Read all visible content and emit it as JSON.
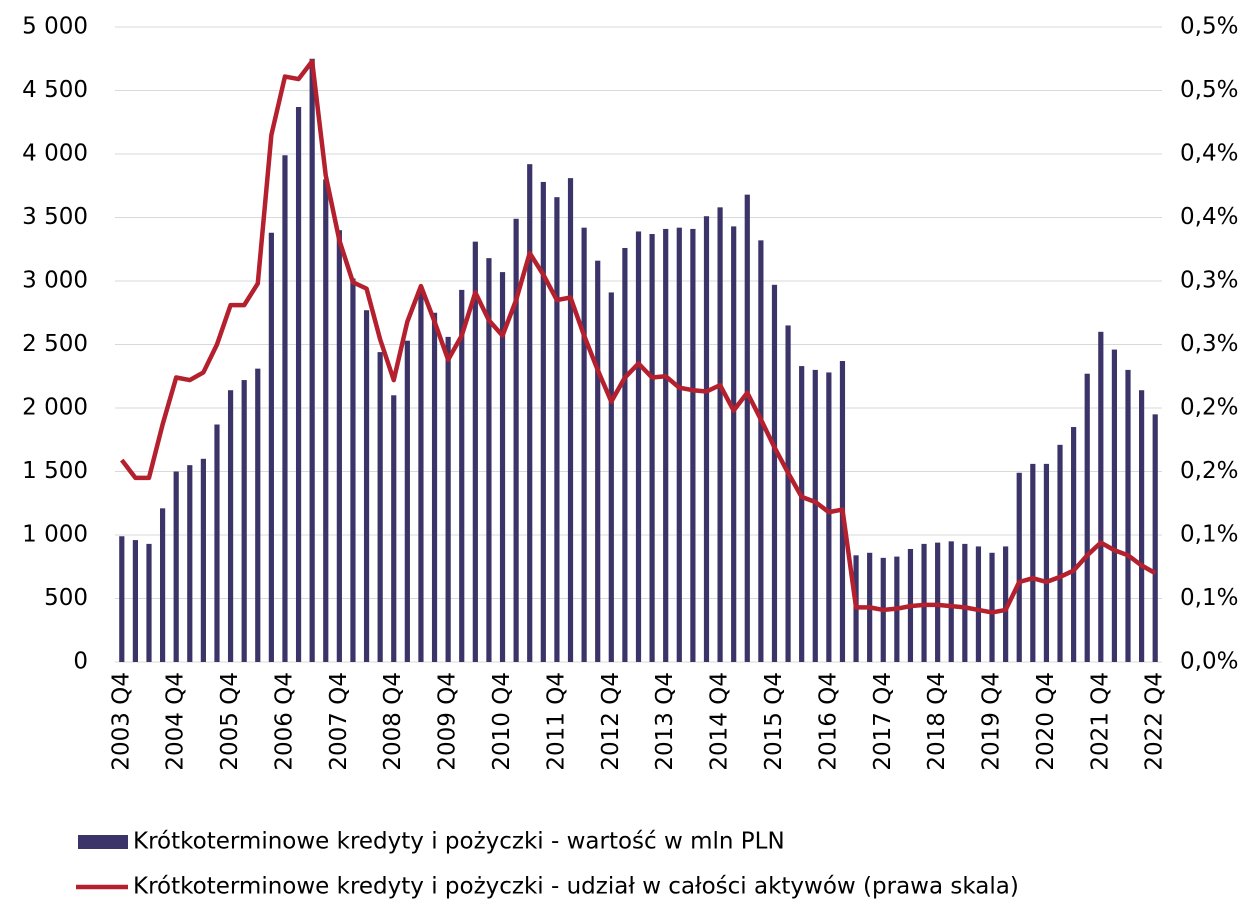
{
  "chart_data": {
    "type": "bar_line",
    "categories": [
      "2003 Q4",
      null,
      null,
      null,
      "2004 Q4",
      null,
      null,
      null,
      "2005 Q4",
      null,
      null,
      null,
      "2006 Q4",
      null,
      null,
      null,
      "2007 Q4",
      null,
      null,
      null,
      "2008 Q4",
      null,
      null,
      null,
      "2009 Q4",
      null,
      null,
      null,
      "2010 Q4",
      null,
      null,
      null,
      "2011 Q4",
      null,
      null,
      null,
      "2012 Q4",
      null,
      null,
      null,
      "2013 Q4",
      null,
      null,
      null,
      "2014 Q4",
      null,
      null,
      null,
      "2015 Q4",
      null,
      null,
      null,
      "2016 Q4",
      null,
      null,
      null,
      "2017 Q4",
      null,
      null,
      null,
      "2018 Q4",
      null,
      null,
      null,
      "2019 Q4",
      null,
      null,
      null,
      "2020 Q4",
      null,
      null,
      null,
      "2021 Q4",
      null,
      null,
      null,
      "2022 Q4"
    ],
    "series": [
      {
        "name": "Krótkoterminowe kredyty i pożyczki - wartość w mln PLN",
        "type": "bar",
        "color": "#3b3468",
        "values": [
          990,
          960,
          930,
          1210,
          1500,
          1550,
          1600,
          1870,
          2140,
          2220,
          2310,
          3380,
          3990,
          4370,
          4750,
          3800,
          3400,
          3020,
          2770,
          2440,
          2100,
          2530,
          2950,
          2750,
          2560,
          2930,
          3310,
          3180,
          3070,
          3490,
          3920,
          3780,
          3660,
          3810,
          3420,
          3160,
          2910,
          3260,
          3390,
          3370,
          3410,
          3420,
          3410,
          3510,
          3580,
          3430,
          3680,
          3320,
          2970,
          2650,
          2330,
          2300,
          2280,
          2370,
          840,
          860,
          820,
          830,
          890,
          930,
          940,
          950,
          930,
          910,
          860,
          910,
          1490,
          1560,
          1560,
          1710,
          1850,
          2270,
          2600,
          2460,
          2300,
          2140,
          1950
        ]
      },
      {
        "name": "Krótkoterminowe kredyty i pożyczki - udział w całości aktywów (prawa skala)",
        "type": "line",
        "axis": "y2",
        "color": "#b5202e",
        "values": [
          0.159,
          0.145,
          0.145,
          0.187,
          0.224,
          0.222,
          0.228,
          0.25,
          0.281,
          0.281,
          0.298,
          0.415,
          0.461,
          0.459,
          0.473,
          0.383,
          0.332,
          0.299,
          0.294,
          0.254,
          0.222,
          0.268,
          0.296,
          0.268,
          0.238,
          0.257,
          0.291,
          0.269,
          0.257,
          0.285,
          0.322,
          0.305,
          0.285,
          0.287,
          0.257,
          0.23,
          0.205,
          0.224,
          0.235,
          0.224,
          0.225,
          0.216,
          0.214,
          0.213,
          0.218,
          0.198,
          0.212,
          0.191,
          0.169,
          0.149,
          0.13,
          0.126,
          0.118,
          0.12,
          0.043,
          0.043,
          0.041,
          0.042,
          0.044,
          0.045,
          0.045,
          0.044,
          0.043,
          0.041,
          0.039,
          0.041,
          0.063,
          0.066,
          0.063,
          0.067,
          0.072,
          0.084,
          0.094,
          0.088,
          0.084,
          0.076,
          0.07
        ]
      }
    ],
    "ylim": [
      0,
      5000
    ],
    "yticks": [
      0,
      500,
      {
        "value": 1000,
        "label": "1 000"
      },
      {
        "value": 1500,
        "label": "1 500"
      },
      {
        "value": 2000,
        "label": "2 000"
      },
      {
        "value": 2500,
        "label": "2 500"
      },
      {
        "value": 3000,
        "label": "3 000"
      },
      {
        "value": 3500,
        "label": "3 500"
      },
      {
        "value": 4000,
        "label": "4 000"
      },
      {
        "value": 4500,
        "label": "4 500"
      },
      {
        "value": 5000,
        "label": "5 000"
      }
    ],
    "y2lim": [
      0,
      0.5
    ],
    "y2ticks": [
      {
        "value": 0,
        "label": "0,0%"
      },
      {
        "value": 0.05,
        "label": "0,1%"
      },
      {
        "value": 0.1,
        "label": "0,1%"
      },
      {
        "value": 0.15,
        "label": "0,2%"
      },
      {
        "value": 0.2,
        "label": "0,2%"
      },
      {
        "value": 0.25,
        "label": "0,3%"
      },
      {
        "value": 0.3,
        "label": "0,3%"
      },
      {
        "value": 0.35,
        "label": "0,4%"
      },
      {
        "value": 0.4,
        "label": "0,4%"
      },
      {
        "value": 0.45,
        "label": "0,5%"
      },
      {
        "value": 0.5,
        "label": "0,5%"
      }
    ],
    "grid": true,
    "legend": "bottom"
  }
}
